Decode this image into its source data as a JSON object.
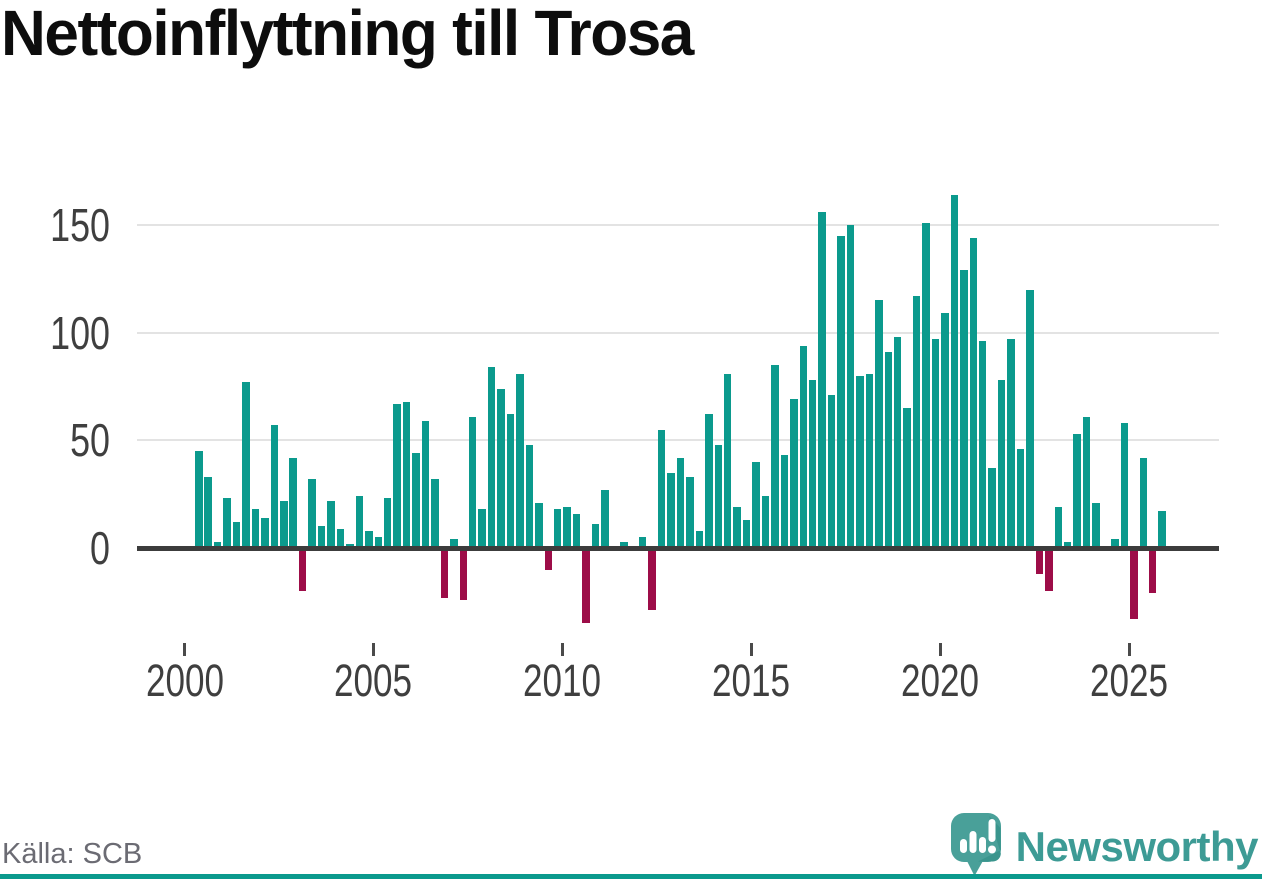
{
  "title": "Nettoinflyttning till Trosa",
  "source": "Källa: SCB",
  "brand": "Newsworthy",
  "colors": {
    "positive_bar": "#0b9a8d",
    "negative_bar": "#9d0d48",
    "logo_teal": "#3d9b95",
    "icon_teal": "#49a099",
    "icon_shade": "#2f8a82",
    "grid": "#e3e3e3",
    "axis_line": "#3c3c3c",
    "tick_label": "#3f3f3f",
    "title_text": "#0d0d0d",
    "source_text": "#6b6b73",
    "background": "#ffffff",
    "bottom_border": "#0b9a8d"
  },
  "chart_data": {
    "type": "bar",
    "title": "Nettoinflyttning till Trosa",
    "xlabel": "",
    "ylabel": "",
    "x_unit": "quarter",
    "yticks": [
      0,
      50,
      100,
      150
    ],
    "xticks": [
      "2000",
      "2005",
      "2010",
      "2015",
      "2020",
      "2025"
    ],
    "ylim": [
      -40,
      170
    ],
    "grid": "horizontal",
    "legend": "none",
    "positive_color": "#0b9a8d",
    "negative_color": "#9d0d48",
    "series": [
      {
        "year": 2000,
        "q": [
          0,
          45,
          33,
          3
        ]
      },
      {
        "year": 2001,
        "q": [
          23,
          12,
          77,
          18
        ]
      },
      {
        "year": 2002,
        "q": [
          14,
          57,
          22,
          42
        ]
      },
      {
        "year": 2003,
        "q": [
          -20,
          32,
          10,
          22
        ]
      },
      {
        "year": 2004,
        "q": [
          9,
          2,
          24,
          8
        ]
      },
      {
        "year": 2005,
        "q": [
          5,
          23,
          67,
          68
        ]
      },
      {
        "year": 2006,
        "q": [
          44,
          59,
          32,
          -23
        ]
      },
      {
        "year": 2007,
        "q": [
          4,
          -24,
          61,
          18
        ]
      },
      {
        "year": 2008,
        "q": [
          84,
          74,
          62,
          81
        ]
      },
      {
        "year": 2009,
        "q": [
          48,
          21,
          -10,
          18
        ]
      },
      {
        "year": 2010,
        "q": [
          19,
          16,
          -35,
          11
        ]
      },
      {
        "year": 2011,
        "q": [
          27,
          0,
          3,
          0
        ]
      },
      {
        "year": 2012,
        "q": [
          5,
          -29,
          55,
          35
        ]
      },
      {
        "year": 2013,
        "q": [
          42,
          33,
          8,
          62
        ]
      },
      {
        "year": 2014,
        "q": [
          48,
          81,
          19,
          13
        ]
      },
      {
        "year": 2015,
        "q": [
          40,
          24,
          85,
          43
        ]
      },
      {
        "year": 2016,
        "q": [
          69,
          94,
          78,
          156
        ]
      },
      {
        "year": 2017,
        "q": [
          71,
          145,
          150,
          80
        ]
      },
      {
        "year": 2018,
        "q": [
          81,
          115,
          91,
          98
        ]
      },
      {
        "year": 2019,
        "q": [
          65,
          117,
          151,
          97
        ]
      },
      {
        "year": 2020,
        "q": [
          109,
          164,
          129,
          144
        ]
      },
      {
        "year": 2021,
        "q": [
          96,
          37,
          78,
          97
        ]
      },
      {
        "year": 2022,
        "q": [
          46,
          120,
          -12,
          -20
        ]
      },
      {
        "year": 2023,
        "q": [
          19,
          3,
          53,
          61
        ]
      },
      {
        "year": 2024,
        "q": [
          21,
          0,
          4,
          58
        ]
      },
      {
        "year": 2025,
        "q": [
          -33,
          42,
          -21,
          17
        ]
      }
    ]
  }
}
